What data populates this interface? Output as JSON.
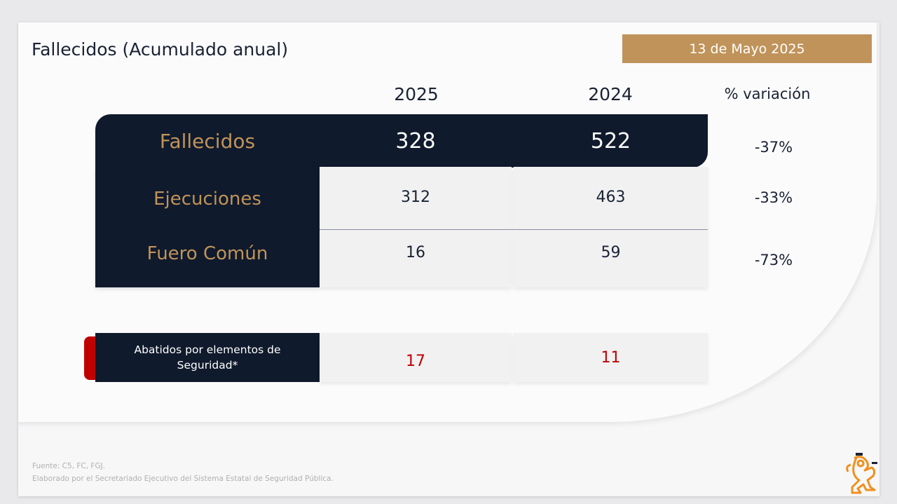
{
  "title": "Fallecidos (Acumulado anual)",
  "date": "13 de Mayo 2025",
  "headers": {
    "y2025": "2025",
    "y2024": "2024",
    "variation": "% variación"
  },
  "rows": [
    {
      "label": "Fallecidos",
      "v2025": "328",
      "v2024": "522",
      "variation": "-37%"
    },
    {
      "label": "Ejecuciones",
      "v2025": "312",
      "v2024": "463",
      "variation": "-33%"
    },
    {
      "label": "Fuero Común",
      "v2025": "16",
      "v2024": "59",
      "variation": "-73%"
    }
  ],
  "abatidos": {
    "label": "Abatidos por elementos de Seguridad*",
    "v2025": "17",
    "v2024": "11"
  },
  "footer": {
    "source": "Fuente: C5, FC, FGJ.",
    "credit": "Elaborado por el Secretariado Ejecutivo del Sistema Estatal de Seguridad Pública."
  },
  "colors": {
    "navy": "#0f1a2c",
    "gold": "#c0935a",
    "red": "#c00000",
    "logo": "#f0901e"
  }
}
